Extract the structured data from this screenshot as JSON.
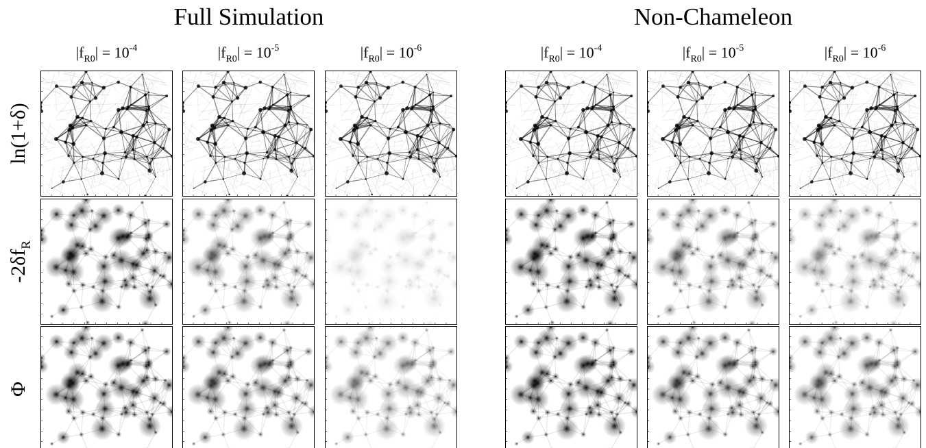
{
  "groups": [
    {
      "title": "Full Simulation",
      "columns": [
        {
          "prefix": "|f",
          "subscript": "R0",
          "middle": "| = 10",
          "exponent": "-4"
        },
        {
          "prefix": "|f",
          "subscript": "R0",
          "middle": "| = 10",
          "exponent": "-5"
        },
        {
          "prefix": "|f",
          "subscript": "R0",
          "middle": "| = 10",
          "exponent": "-6"
        }
      ]
    },
    {
      "title": "Non-Chameleon",
      "columns": [
        {
          "prefix": "|f",
          "subscript": "R0",
          "middle": "| = 10",
          "exponent": "-4"
        },
        {
          "prefix": "|f",
          "subscript": "R0",
          "middle": "| = 10",
          "exponent": "-5"
        },
        {
          "prefix": "|f",
          "subscript": "R0",
          "middle": "| = 10",
          "exponent": "-6"
        }
      ]
    }
  ],
  "rows": [
    {
      "label": "ln(1+δ)"
    },
    {
      "label": "-2δf",
      "subscript": "R"
    },
    {
      "label": "Φ"
    }
  ]
}
